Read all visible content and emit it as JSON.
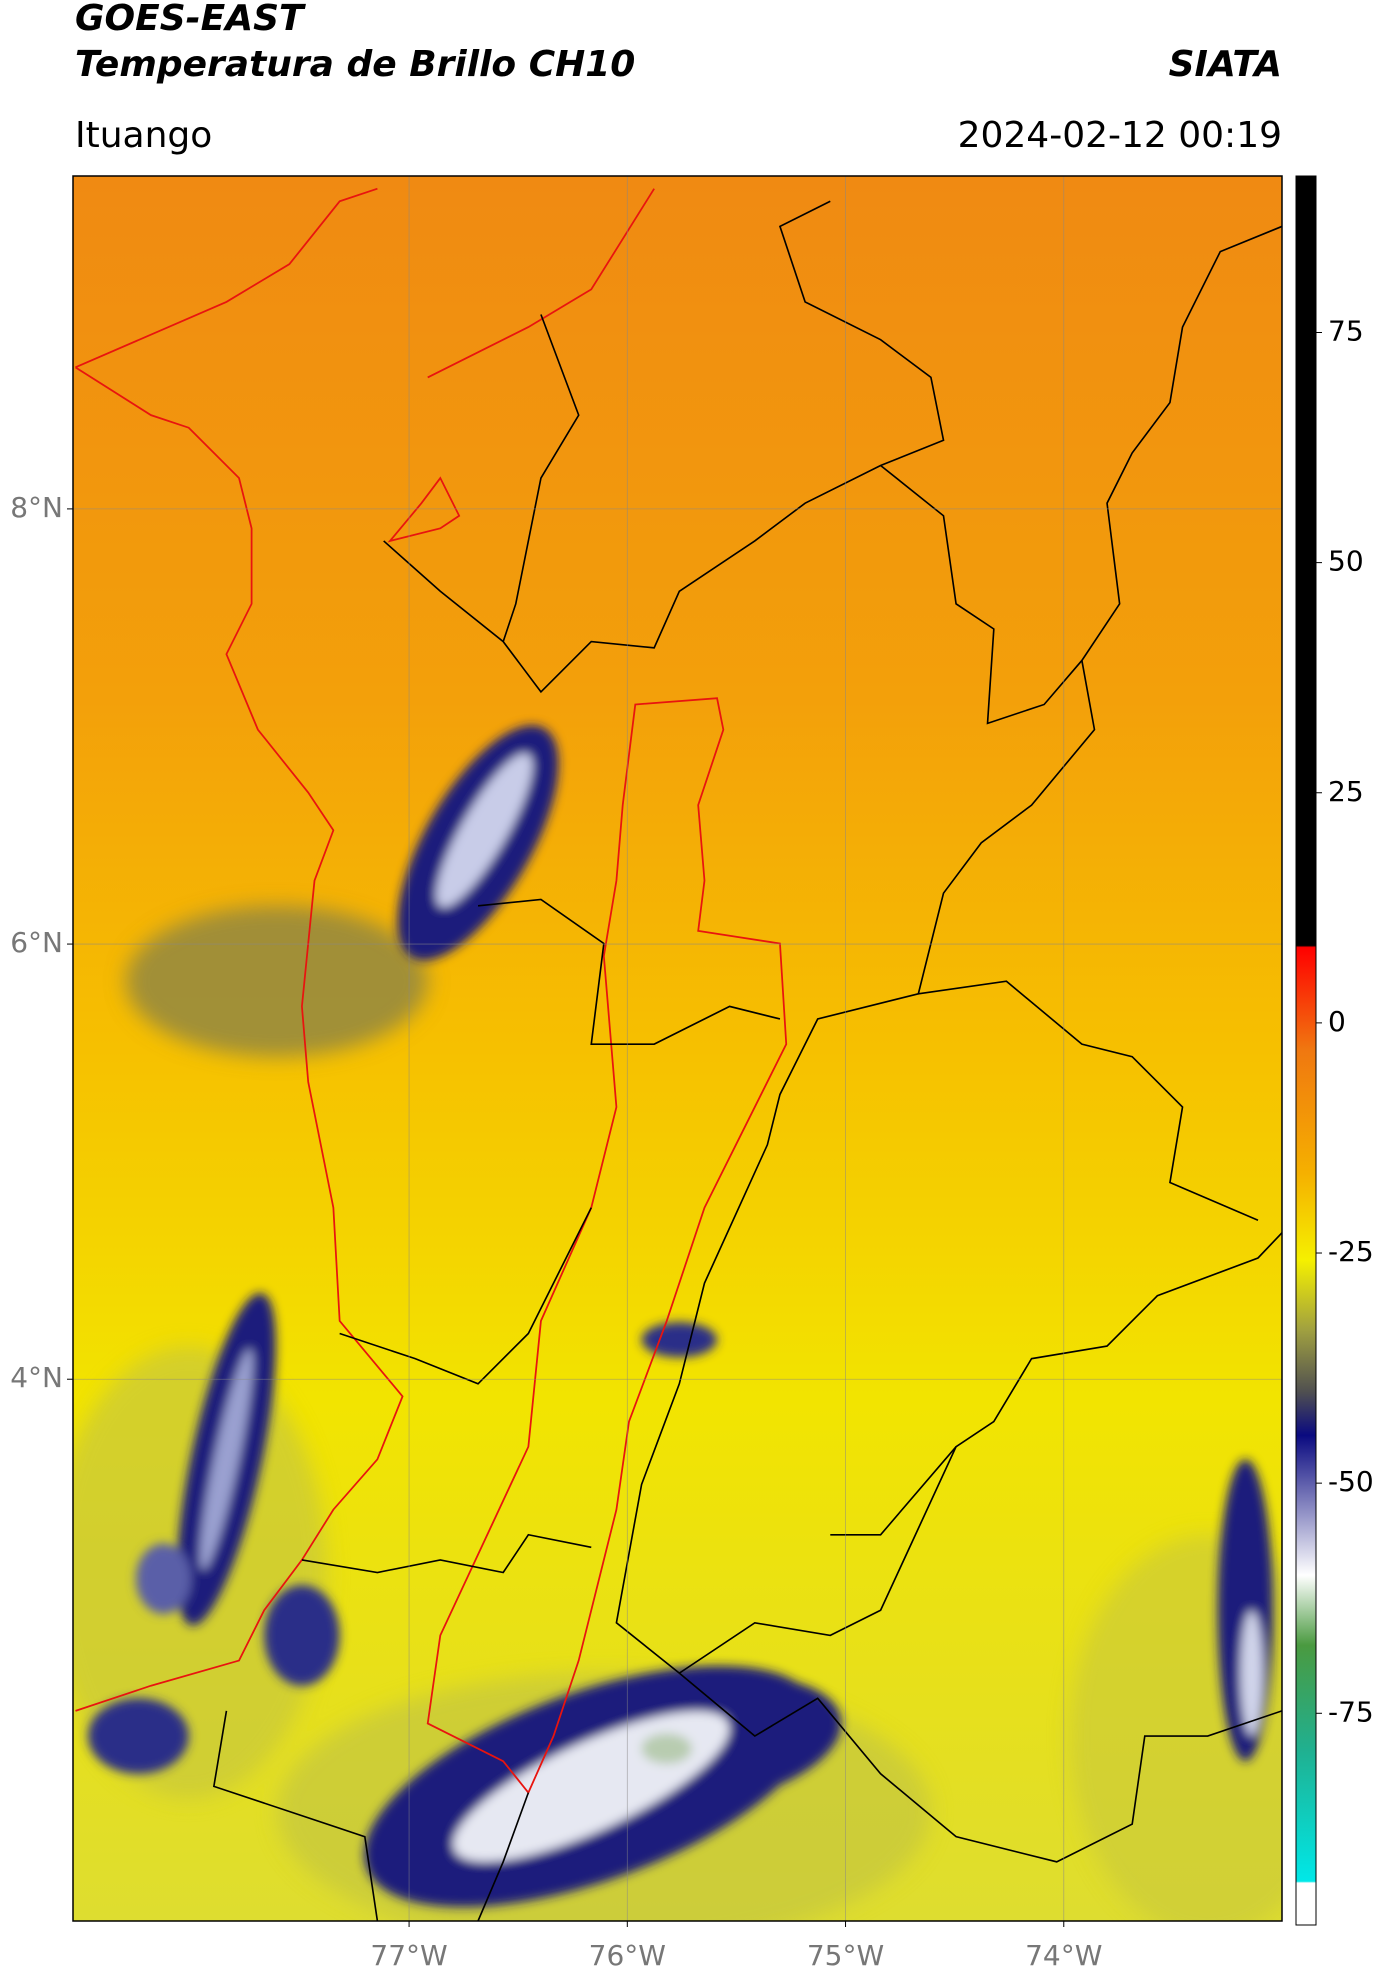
{
  "header": {
    "title": "GOES-EAST",
    "subtitle": "Temperatura de Brillo CH10",
    "agency": "SIATA",
    "location": "Ituango",
    "datetime": "2024-02-12 00:19"
  },
  "map": {
    "xlim": [
      -78.54,
      -73.0
    ],
    "ylim": [
      1.51,
      9.53
    ],
    "xticks": [
      {
        "value": -77,
        "label": "77°W"
      },
      {
        "value": -76,
        "label": "76°W"
      },
      {
        "value": -75,
        "label": "75°W"
      },
      {
        "value": -74,
        "label": "74°W"
      }
    ],
    "yticks": [
      {
        "value": 8,
        "label": "8°N"
      },
      {
        "value": 6,
        "label": "6°N"
      },
      {
        "value": 4,
        "label": "4°N"
      }
    ]
  },
  "colorbar": {
    "clim": [
      -98,
      92
    ],
    "ticks": [
      75,
      50,
      25,
      0,
      -25,
      -50,
      -75
    ]
  }
}
